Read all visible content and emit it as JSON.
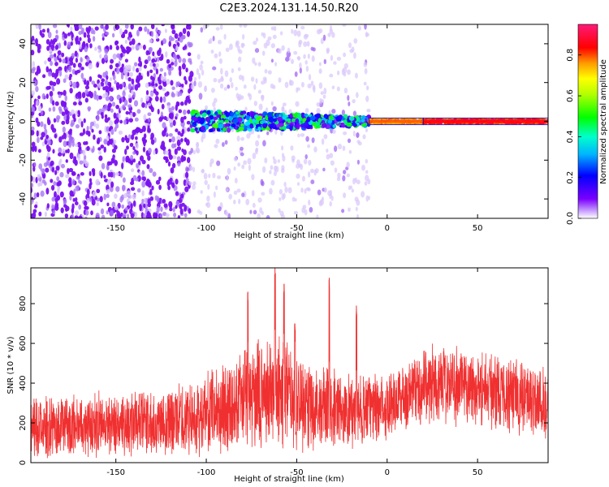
{
  "title": "C2E3.2024.131.14.50.R20",
  "chart_data": [
    {
      "type": "heatmap",
      "xlabel": "Height of straight line (km)",
      "ylabel": "Frequency (Hz)",
      "xlim": [
        -197,
        89
      ],
      "ylim": [
        -50,
        50
      ],
      "x_ticks": [
        -150,
        -100,
        -50,
        0,
        50
      ],
      "y_ticks": [
        -40,
        -20,
        0,
        20,
        40
      ],
      "colorbar": {
        "label": "Normalized spectral amplitude",
        "range": [
          0,
          0.95
        ],
        "ticks": [
          0.0,
          0.2,
          0.4,
          0.6,
          0.8
        ],
        "colors": [
          "#ffffff",
          "#7b00ff",
          "#0000ff",
          "#00e5ff",
          "#00ff00",
          "#ffff00",
          "#ff8000",
          "#ff0000",
          "#ff1080"
        ]
      },
      "grid": false,
      "regions": [
        {
          "x_range": [
            -197,
            -108
          ],
          "freq_range": [
            -50,
            50
          ],
          "amplitude": 0.05
        },
        {
          "x_range": [
            -108,
            -10
          ],
          "freq_range": [
            -50,
            50
          ],
          "amplitude": 0.02
        },
        {
          "x_range": [
            -108,
            -10
          ],
          "freq_center": 0,
          "amplitude": 0.3
        },
        {
          "x_range": [
            -10,
            20
          ],
          "freq_center": 0,
          "amplitude": 0.75
        },
        {
          "x_range": [
            20,
            89
          ],
          "freq_center": 0,
          "amplitude": 0.85
        }
      ]
    },
    {
      "type": "line",
      "xlabel": "Height of straight line (km)",
      "ylabel": "SNR (10 * v/v)",
      "xlim": [
        -197,
        89
      ],
      "ylim": [
        0,
        980
      ],
      "x_ticks": [
        -150,
        -100,
        -50,
        0,
        50
      ],
      "y_ticks": [
        0,
        200,
        400,
        600,
        800
      ],
      "grid": false,
      "series": [
        {
          "color": "#f03030",
          "envelope": {
            "x": [
              -197,
              -180,
              -160,
              -140,
              -120,
              -105,
              -95,
              -85,
              -75,
              -65,
              -55,
              -45,
              -35,
              -25,
              -15,
              -5,
              5,
              15,
              25,
              35,
              45,
              55,
              65,
              75,
              89
            ],
            "low": [
              0,
              20,
              20,
              20,
              25,
              25,
              30,
              35,
              40,
              40,
              40,
              35,
              30,
              30,
              60,
              80,
              120,
              160,
              180,
              180,
              170,
              160,
              140,
              120,
              90
            ],
            "high": [
              330,
              350,
              370,
              380,
              400,
              430,
              500,
              560,
              620,
              680,
              640,
              560,
              520,
              480,
              460,
              480,
              510,
              560,
              620,
              620,
              600,
              580,
              560,
              540,
              520
            ]
          },
          "peaks": [
            {
              "x": -77,
              "y": 860
            },
            {
              "x": -62,
              "y": 980
            },
            {
              "x": -57,
              "y": 900
            },
            {
              "x": -51,
              "y": 700
            },
            {
              "x": -32,
              "y": 930
            },
            {
              "x": -17,
              "y": 790
            }
          ]
        }
      ]
    }
  ]
}
